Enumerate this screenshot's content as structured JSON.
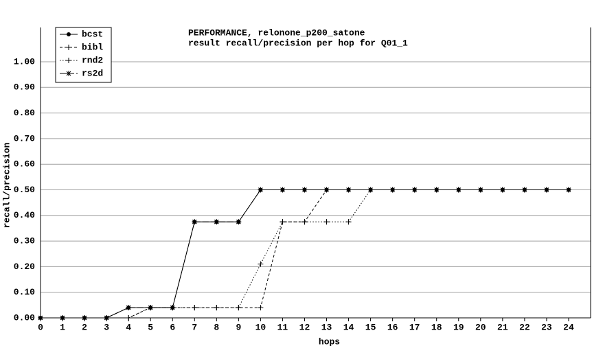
{
  "chart_data": {
    "type": "line",
    "title": [
      "PERFORMANCE, relonone_p200_satone",
      "result recall/precision per hop for Q01_1"
    ],
    "xlabel": "hops",
    "ylabel": "recall/precision",
    "x": [
      0,
      1,
      2,
      3,
      4,
      5,
      6,
      7,
      8,
      9,
      10,
      11,
      12,
      13,
      14,
      15,
      16,
      17,
      18,
      19,
      20,
      21,
      22,
      23,
      24
    ],
    "series": [
      {
        "name": "bcst",
        "color": "#000000",
        "values": [
          0,
          0,
          0,
          0,
          0.04,
          0.04,
          0.04,
          0.375,
          0.375,
          0.375,
          0.5,
          0.5,
          0.5,
          0.5,
          0.5,
          0.5,
          0.5,
          0.5,
          0.5,
          0.5,
          0.5,
          0.5,
          0.5,
          0.5,
          0.5
        ]
      },
      {
        "name": "bibl",
        "color": "#000000",
        "values": [
          0,
          0,
          0,
          0,
          0,
          0.04,
          0.04,
          0.04,
          0.04,
          0.04,
          0.04,
          0.375,
          0.375,
          0.5,
          0.5,
          0.5,
          0.5,
          0.5,
          0.5,
          0.5,
          0.5,
          0.5,
          0.5,
          0.5,
          0.5
        ]
      },
      {
        "name": "rnd2",
        "color": "#000000",
        "values": [
          0,
          0,
          0,
          0,
          0,
          0.04,
          0.04,
          0.04,
          0.04,
          0.04,
          0.21,
          0.375,
          0.375,
          0.375,
          0.375,
          0.5,
          0.5,
          0.5,
          0.5,
          0.5,
          0.5,
          0.5,
          0.5,
          0.5,
          0.5
        ]
      },
      {
        "name": "rs2d",
        "color": "#000000",
        "values": [
          0,
          0,
          0,
          0,
          0.04,
          0.04,
          0.04,
          0.375,
          0.375,
          0.375,
          0.5,
          0.5,
          0.5,
          0.5,
          0.5,
          0.5,
          0.5,
          0.5,
          0.5,
          0.5,
          0.5,
          0.5,
          0.5,
          0.5,
          0.5
        ]
      }
    ],
    "xlim": [
      0,
      25
    ],
    "xticks": [
      0,
      1,
      2,
      3,
      4,
      5,
      6,
      7,
      8,
      9,
      10,
      11,
      12,
      13,
      14,
      15,
      16,
      17,
      18,
      19,
      20,
      21,
      22,
      23,
      24
    ],
    "ylim": [
      0,
      1.1
    ],
    "yticks": [
      {
        "value": 0,
        "label": "0.00"
      },
      {
        "value": 0.1,
        "label": "0.10"
      },
      {
        "value": 0.2,
        "label": "0.20"
      },
      {
        "value": 0.3,
        "label": "0.30"
      },
      {
        "value": 0.4,
        "label": "0.40"
      },
      {
        "value": 0.5,
        "label": "0.50"
      },
      {
        "value": 0.6,
        "label": "0.60"
      },
      {
        "value": 0.7,
        "label": "0.70"
      },
      {
        "value": 0.8,
        "label": "0.80"
      },
      {
        "value": 0.9,
        "label": "0.90"
      },
      {
        "value": 1,
        "label": "1.00"
      }
    ],
    "grid": true,
    "legend": "upper left"
  }
}
